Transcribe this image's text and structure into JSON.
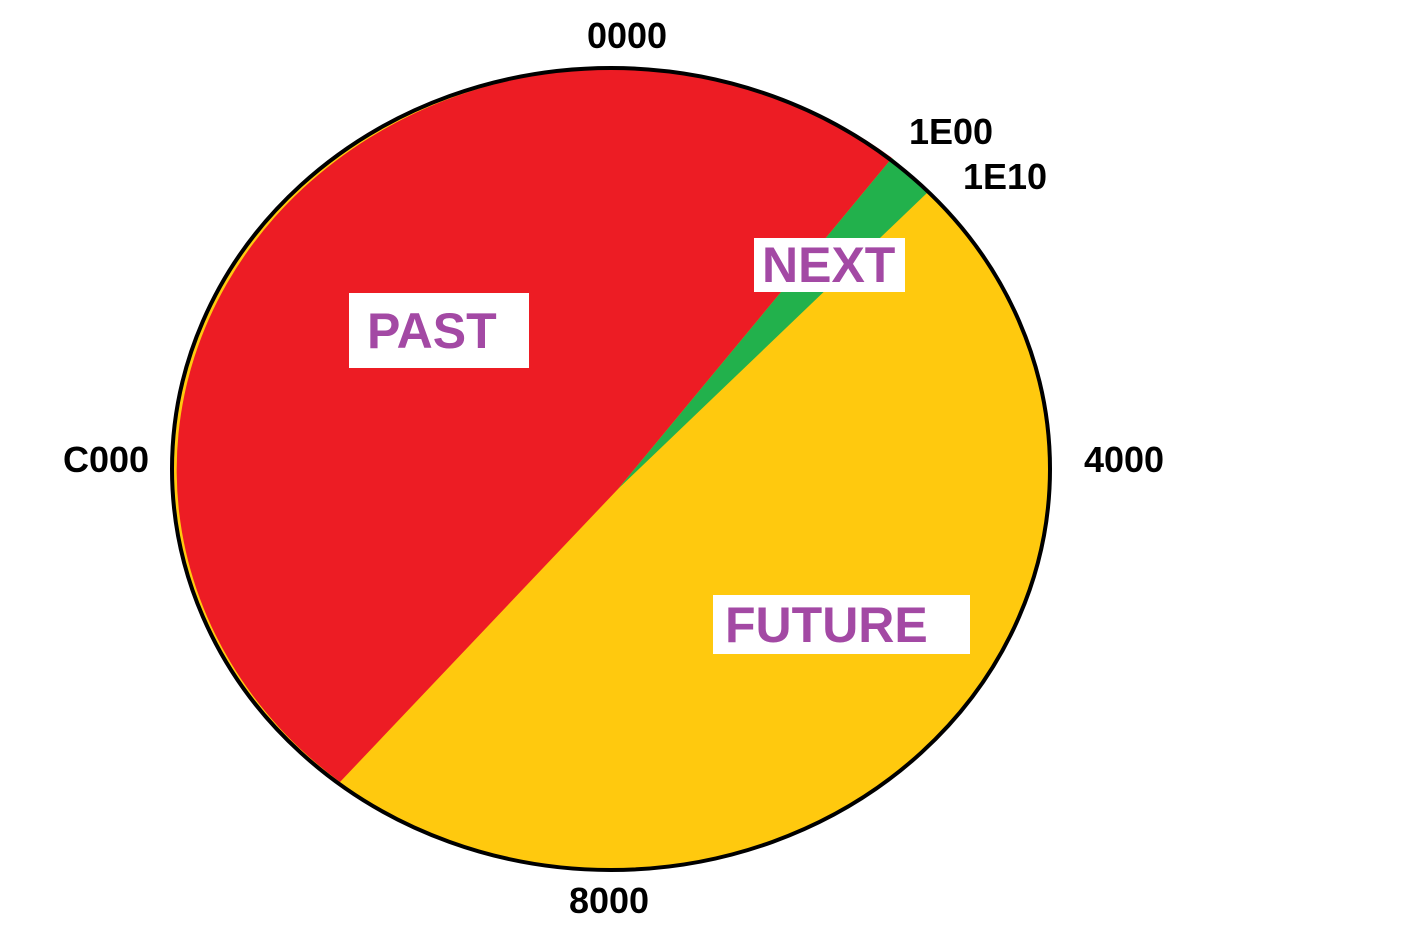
{
  "colors": {
    "past": "#ED1C24",
    "next": "#22B14C",
    "future": "#FFC90E",
    "label_text": "#A349A4",
    "outline": "#000000"
  },
  "ticks": {
    "top": "0000",
    "next_start": "1E00",
    "next_end": "1E10",
    "right": "4000",
    "bottom": "8000",
    "left": "C000"
  },
  "regions": {
    "past": "PAST",
    "next": "NEXT",
    "future": "FUTURE"
  }
}
